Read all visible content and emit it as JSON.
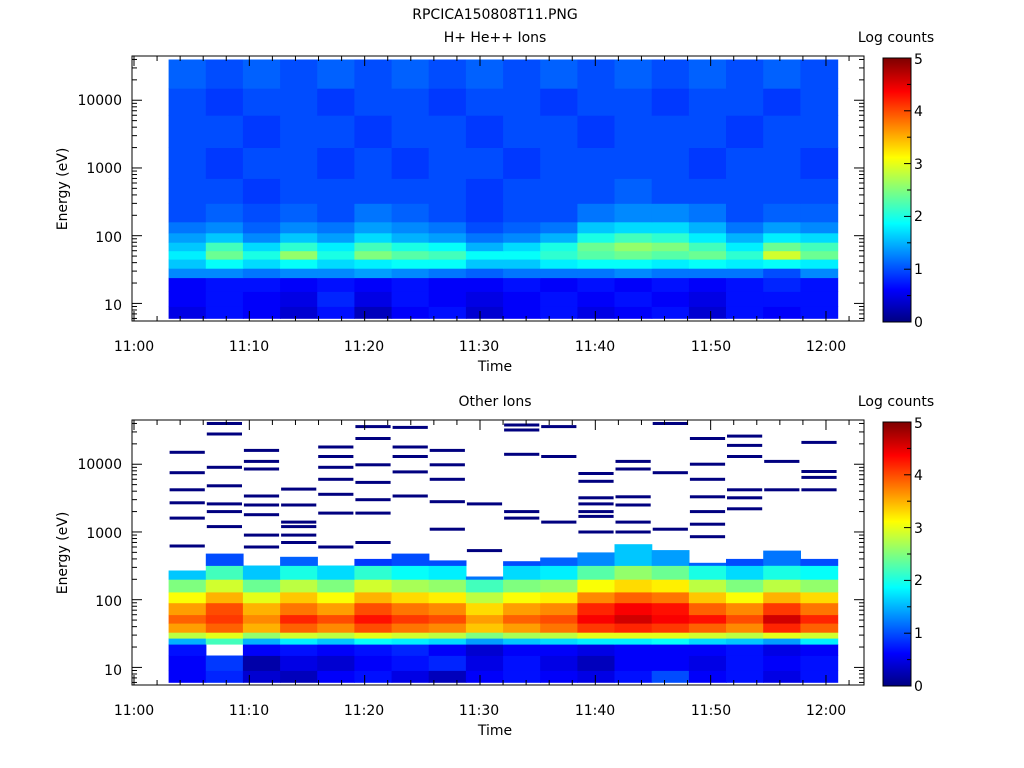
{
  "page_title": "RPCICA150808T11.PNG",
  "colormap": [
    "#00007f",
    "#0000ff",
    "#007fff",
    "#00ffff",
    "#7fff7f",
    "#ffff00",
    "#ff7f00",
    "#ff0000",
    "#7f0000"
  ],
  "chart_data": [
    {
      "type": "heatmap",
      "title": "H+ He++ Ions",
      "xlabel": "Time",
      "ylabel": "Energy (eV)",
      "xticks": [
        "11:00",
        "11:10",
        "11:20",
        "11:30",
        "11:40",
        "11:50",
        "12:00"
      ],
      "yticks": [
        "10",
        "100",
        "1000",
        "10000"
      ],
      "y_scale": "log",
      "ylim": [
        5.5,
        45000
      ],
      "colorbar": {
        "label": "Log counts",
        "ticks": [
          "0",
          "1",
          "2",
          "3",
          "4",
          "5"
        ],
        "range": [
          0,
          5
        ]
      },
      "time_range_min": [
        3,
        61
      ],
      "columns": 18,
      "bands": [
        {
          "e_range": [
            6,
            9
          ],
          "levels": [
            0.5,
            0.7,
            0.6,
            0.4,
            0.7,
            0.3,
            0.6,
            0.7,
            0.4,
            0.6,
            0.7,
            0.5,
            0.6,
            0.7,
            0.4,
            0.7,
            0.6,
            0.7
          ]
        },
        {
          "e_range": [
            9,
            15
          ],
          "levels": [
            0.6,
            0.7,
            0.6,
            0.5,
            0.8,
            0.5,
            0.7,
            0.6,
            0.5,
            0.6,
            0.7,
            0.6,
            0.7,
            0.6,
            0.5,
            0.7,
            0.7,
            0.7
          ]
        },
        {
          "e_range": [
            15,
            24
          ],
          "levels": [
            0.6,
            0.7,
            0.7,
            0.6,
            0.7,
            0.6,
            0.7,
            0.6,
            0.6,
            0.7,
            0.6,
            0.7,
            0.6,
            0.7,
            0.6,
            0.7,
            0.8,
            0.7
          ]
        },
        {
          "e_range": [
            24,
            33
          ],
          "levels": [
            1.3,
            1.3,
            1.2,
            1.3,
            1.3,
            1.4,
            1.3,
            1.2,
            1.1,
            1.2,
            1.2,
            1.2,
            1.3,
            1.2,
            1.2,
            1.2,
            1.0,
            1.3
          ]
        },
        {
          "e_range": [
            33,
            45
          ],
          "levels": [
            1.6,
            1.9,
            1.7,
            1.9,
            1.7,
            1.8,
            1.9,
            1.9,
            1.6,
            1.6,
            1.8,
            1.9,
            1.9,
            1.8,
            1.9,
            1.8,
            1.9,
            1.8
          ]
        },
        {
          "e_range": [
            45,
            60
          ],
          "levels": [
            1.8,
            2.4,
            2.0,
            2.6,
            2.0,
            2.5,
            2.3,
            2.2,
            1.9,
            1.9,
            2.1,
            2.3,
            2.4,
            2.3,
            2.4,
            2.1,
            2.9,
            2.4
          ]
        },
        {
          "e_range": [
            60,
            80
          ],
          "levels": [
            1.6,
            2.2,
            1.7,
            2.1,
            1.8,
            2.2,
            2.0,
            1.9,
            1.5,
            1.7,
            2.0,
            2.4,
            2.6,
            2.5,
            2.2,
            1.8,
            2.4,
            2.2
          ]
        },
        {
          "e_range": [
            80,
            110
          ],
          "levels": [
            1.4,
            1.6,
            1.3,
            1.6,
            1.4,
            1.7,
            1.5,
            1.4,
            1.2,
            1.3,
            1.5,
            2.0,
            2.2,
            2.1,
            1.8,
            1.5,
            1.8,
            1.7
          ]
        },
        {
          "e_range": [
            110,
            160
          ],
          "levels": [
            1.2,
            1.3,
            1.1,
            1.3,
            1.2,
            1.4,
            1.3,
            1.2,
            1.0,
            1.1,
            1.2,
            1.6,
            1.7,
            1.7,
            1.5,
            1.2,
            1.4,
            1.3
          ]
        },
        {
          "e_range": [
            160,
            300
          ],
          "levels": [
            1.0,
            1.1,
            1.0,
            1.1,
            1.0,
            1.2,
            1.1,
            1.0,
            0.9,
            1.0,
            1.0,
            1.2,
            1.3,
            1.3,
            1.2,
            1.0,
            1.1,
            1.1
          ]
        },
        {
          "e_range": [
            300,
            700
          ],
          "levels": [
            1.0,
            1.0,
            0.9,
            1.0,
            1.0,
            1.0,
            1.0,
            1.0,
            0.9,
            1.0,
            1.0,
            1.0,
            1.1,
            1.0,
            1.0,
            1.0,
            1.0,
            1.0
          ]
        },
        {
          "e_range": [
            700,
            2000
          ],
          "levels": [
            1.0,
            0.9,
            1.0,
            1.0,
            0.9,
            1.0,
            0.9,
            1.0,
            1.0,
            0.9,
            1.0,
            1.0,
            1.0,
            1.0,
            0.9,
            1.0,
            1.0,
            0.9
          ]
        },
        {
          "e_range": [
            2000,
            6000
          ],
          "levels": [
            1.0,
            1.0,
            0.9,
            1.0,
            1.0,
            0.9,
            1.0,
            1.0,
            0.9,
            1.0,
            1.0,
            0.9,
            1.0,
            1.0,
            1.0,
            0.9,
            1.0,
            1.0
          ]
        },
        {
          "e_range": [
            6000,
            15000
          ],
          "levels": [
            1.0,
            0.9,
            1.0,
            1.0,
            0.9,
            1.0,
            1.0,
            0.9,
            1.0,
            1.0,
            0.9,
            1.0,
            1.0,
            0.9,
            1.0,
            1.0,
            0.9,
            1.0
          ]
        },
        {
          "e_range": [
            15000,
            40000
          ],
          "levels": [
            1.1,
            1.0,
            1.1,
            1.0,
            1.1,
            1.0,
            1.1,
            1.0,
            1.1,
            1.0,
            1.1,
            1.0,
            1.1,
            1.0,
            1.1,
            1.0,
            1.1,
            1.0
          ]
        }
      ]
    },
    {
      "type": "heatmap",
      "title": "Other Ions",
      "xlabel": "Time",
      "ylabel": "Energy (eV)",
      "xticks": [
        "11:00",
        "11:10",
        "11:20",
        "11:30",
        "11:40",
        "11:50",
        "12:00"
      ],
      "yticks": [
        "10",
        "100",
        "1000",
        "10000"
      ],
      "y_scale": "log",
      "ylim": [
        5.5,
        45000
      ],
      "colorbar": {
        "label": "Log counts",
        "ticks": [
          "0",
          "1",
          "2",
          "3",
          "4",
          "5"
        ],
        "range": [
          0,
          5
        ]
      },
      "time_range_min": [
        3,
        61
      ],
      "columns": 18,
      "top_energy": [
        270,
        480,
        320,
        430,
        330,
        400,
        480,
        380,
        220,
        370,
        420,
        500,
        660,
        540,
        350,
        400,
        530,
        400
      ],
      "bands": [
        {
          "e_range": [
            6,
            9
          ],
          "levels": [
            0.6,
            0.8,
            0.4,
            0.3,
            0.6,
            0.7,
            0.5,
            0.3,
            0.6,
            0.7,
            0.6,
            0.5,
            0.7,
            1.0,
            0.6,
            0.7,
            0.5,
            0.7
          ]
        },
        {
          "e_range": [
            9,
            15
          ],
          "levels": [
            0.6,
            0.9,
            0.2,
            0.5,
            0.4,
            0.6,
            0.7,
            0.8,
            0.5,
            0.7,
            0.5,
            0.3,
            0.6,
            0.6,
            0.5,
            0.7,
            0.6,
            0.7
          ]
        },
        {
          "e_range": [
            15,
            22
          ],
          "levels": [
            0.7,
            -1,
            0.6,
            0.7,
            0.6,
            0.7,
            0.8,
            0.6,
            0.4,
            0.6,
            0.6,
            0.5,
            0.6,
            0.6,
            0.6,
            0.7,
            0.5,
            0.6
          ]
        },
        {
          "e_range": [
            22,
            27
          ],
          "levels": [
            1.5,
            2.2,
            1.5,
            1.8,
            1.6,
            1.9,
            1.8,
            1.7,
            1.4,
            1.6,
            1.7,
            1.8,
            1.8,
            1.9,
            1.7,
            1.6,
            1.4,
            1.8
          ]
        },
        {
          "e_range": [
            27,
            33
          ],
          "levels": [
            2.8,
            3.0,
            2.6,
            2.9,
            2.8,
            3.0,
            2.9,
            2.8,
            2.5,
            2.7,
            2.8,
            3.0,
            3.0,
            3.0,
            2.9,
            2.8,
            3.0,
            2.9
          ]
        },
        {
          "e_range": [
            33,
            45
          ],
          "levels": [
            3.6,
            3.9,
            3.5,
            3.9,
            3.7,
            4.0,
            3.8,
            3.7,
            3.4,
            3.6,
            3.8,
            4.1,
            4.2,
            4.1,
            3.9,
            3.7,
            4.2,
            3.9
          ]
        },
        {
          "e_range": [
            45,
            60
          ],
          "levels": [
            3.9,
            4.1,
            3.7,
            4.2,
            4.0,
            4.3,
            4.1,
            4.0,
            3.6,
            3.9,
            4.0,
            4.4,
            4.6,
            4.4,
            4.3,
            4.0,
            4.6,
            4.2
          ]
        },
        {
          "e_range": [
            60,
            90
          ],
          "levels": [
            3.6,
            4.0,
            3.5,
            3.8,
            3.6,
            4.0,
            3.8,
            3.7,
            3.3,
            3.6,
            3.7,
            4.2,
            4.4,
            4.3,
            3.9,
            3.7,
            4.1,
            3.8
          ]
        },
        {
          "e_range": [
            90,
            130
          ],
          "levels": [
            3.1,
            3.5,
            3.0,
            3.4,
            3.1,
            3.5,
            3.3,
            3.2,
            2.8,
            3.1,
            3.2,
            3.7,
            3.9,
            3.8,
            3.4,
            3.1,
            3.5,
            3.3
          ]
        },
        {
          "e_range": [
            130,
            200
          ],
          "levels": [
            2.5,
            2.9,
            2.4,
            2.8,
            2.5,
            2.9,
            2.7,
            2.6,
            2.2,
            2.5,
            2.6,
            3.1,
            3.3,
            3.2,
            2.8,
            2.5,
            2.8,
            2.6
          ]
        },
        {
          "e_range": [
            200,
            320
          ],
          "levels": [
            1.6,
            2.2,
            1.6,
            2.0,
            1.7,
            2.1,
            1.9,
            1.8,
            1.2,
            1.7,
            1.8,
            2.3,
            2.6,
            2.4,
            2.0,
            1.7,
            2.0,
            1.9
          ]
        },
        {
          "e_range": [
            320,
            700
          ],
          "levels": [
            -1,
            1.0,
            -1,
            1.1,
            -1,
            0.9,
            1.0,
            1.0,
            -1,
            1.0,
            1.1,
            1.3,
            1.6,
            1.4,
            1.1,
            1.0,
            1.2,
            1.0
          ]
        }
      ],
      "sparse_lines_eV": [
        [
          620,
          1600,
          2700,
          4200,
          7500,
          15000
        ],
        [
          1200,
          2000,
          2600,
          4800,
          9000,
          28000,
          40000
        ],
        [
          600,
          900,
          1800,
          2500,
          3400,
          8500,
          11000,
          16000
        ],
        [
          700,
          900,
          1200,
          1400,
          2500,
          4300
        ],
        [
          600,
          1900,
          3600,
          6000,
          9000,
          13000,
          18000
        ],
        [
          700,
          1900,
          3000,
          5400,
          9800,
          24000,
          36000
        ],
        [
          3400,
          7700,
          13000,
          18000,
          35000
        ],
        [
          1100,
          2800,
          6000,
          9800,
          16000
        ],
        [
          530,
          2600
        ],
        [
          1600,
          2000,
          14000,
          32000,
          38000
        ],
        [
          1400,
          13000,
          36000
        ],
        [
          1000,
          1700,
          2000,
          2600,
          3200,
          5600,
          7300
        ],
        [
          1000,
          1400,
          2500,
          3300,
          8500,
          11000
        ],
        [
          1100,
          7500,
          40000
        ],
        [
          850,
          1300,
          2000,
          3300,
          6000,
          10000,
          24000
        ],
        [
          2200,
          3200,
          4200,
          13000,
          19000,
          26000
        ],
        [
          4200,
          11000
        ],
        [
          4200,
          6400,
          7800,
          21000
        ]
      ]
    }
  ]
}
